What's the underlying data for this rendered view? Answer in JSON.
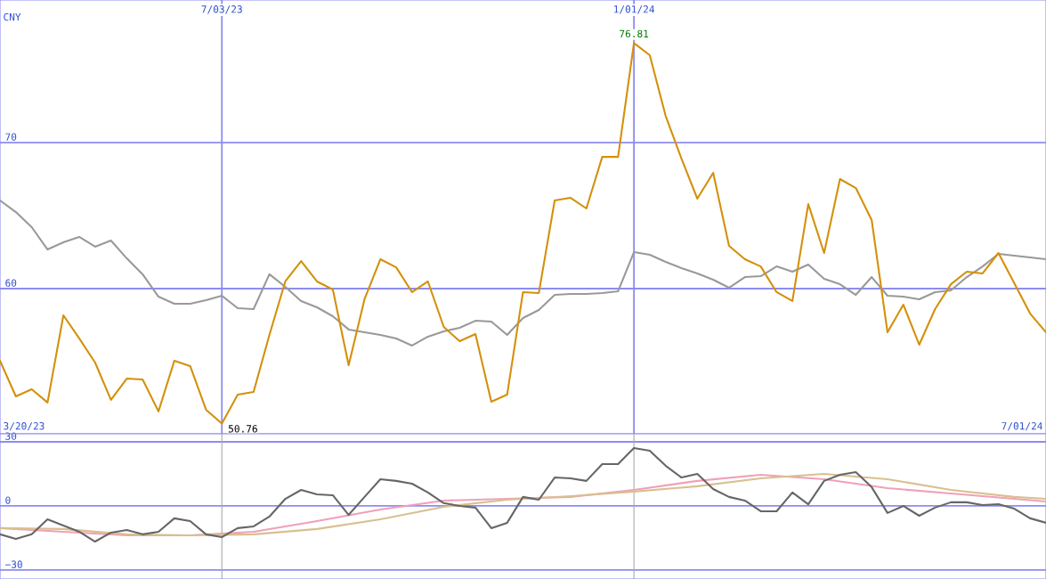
{
  "chart_data": [
    {
      "type": "line",
      "ylabel": "CNY",
      "xlim": [
        "2023-03-27",
        "2024-07-01"
      ],
      "ylim": [
        50.06,
        79.76
      ],
      "yticks": [
        60,
        70
      ],
      "xticks": [
        {
          "value": "2023-07-03",
          "label": "7/03/23"
        },
        {
          "value": "2024-01-01",
          "label": "1/01/24"
        }
      ],
      "grid": true,
      "x": [
        "2023-03-27",
        "2023-04-03",
        "2023-04-10",
        "2023-04-17",
        "2023-04-24",
        "2023-05-01",
        "2023-05-08",
        "2023-05-15",
        "2023-05-22",
        "2023-05-29",
        "2023-06-05",
        "2023-06-12",
        "2023-06-19",
        "2023-06-26",
        "2023-07-03",
        "2023-07-10",
        "2023-07-17",
        "2023-07-24",
        "2023-07-31",
        "2023-08-07",
        "2023-08-14",
        "2023-08-21",
        "2023-08-28",
        "2023-09-04",
        "2023-09-11",
        "2023-09-18",
        "2023-09-25",
        "2023-10-02",
        "2023-10-09",
        "2023-10-16",
        "2023-10-23",
        "2023-10-30",
        "2023-11-06",
        "2023-11-13",
        "2023-11-20",
        "2023-11-27",
        "2023-12-04",
        "2023-12-11",
        "2023-12-18",
        "2023-12-25",
        "2024-01-01",
        "2024-01-08",
        "2024-01-15",
        "2024-01-22",
        "2024-01-29",
        "2024-02-05",
        "2024-02-12",
        "2024-02-19",
        "2024-02-26",
        "2024-03-04",
        "2024-03-11",
        "2024-03-18",
        "2024-03-25",
        "2024-04-01",
        "2024-04-08",
        "2024-04-15",
        "2024-04-22",
        "2024-04-29",
        "2024-05-06",
        "2024-05-13",
        "2024-05-20",
        "2024-05-27",
        "2024-06-03",
        "2024-06-10",
        "2024-06-17",
        "2024-06-24",
        "2024-07-01"
      ],
      "series": [
        {
          "color": "#999999",
          "values": [
            66.04,
            65.24,
            64.21,
            62.68,
            63.17,
            63.54,
            62.87,
            63.29,
            62.07,
            60.98,
            59.45,
            58.96,
            58.96,
            59.21,
            59.51,
            58.66,
            58.6,
            60.98,
            60.12,
            59.15,
            58.72,
            58.11,
            57.2,
            57.01,
            56.83,
            56.59,
            56.1,
            56.71,
            57.07,
            57.32,
            57.8,
            57.74,
            56.83,
            57.99,
            58.54,
            59.57,
            59.63,
            59.63,
            59.7,
            59.82,
            62.5,
            62.32,
            61.83,
            61.4,
            61.04,
            60.61,
            60.06,
            60.79,
            60.85,
            61.52,
            61.16,
            61.65,
            60.67,
            60.3,
            59.57,
            60.79,
            59.51,
            59.45,
            59.27,
            59.76,
            59.88,
            60.79,
            61.52,
            62.38,
            62.26,
            62.13,
            62.01
          ]
        },
        {
          "color": "#d4900a",
          "values": [
            55.06,
            52.62,
            53.11,
            52.2,
            58.17,
            56.59,
            54.94,
            52.38,
            53.84,
            53.78,
            51.59,
            55.06,
            54.7,
            51.71,
            50.76,
            52.74,
            52.93,
            56.83,
            60.49,
            61.89,
            60.49,
            59.94,
            54.76,
            59.27,
            62.01,
            61.46,
            59.76,
            60.49,
            57.38,
            56.4,
            56.89,
            52.26,
            52.74,
            59.76,
            59.7,
            66.04,
            66.22,
            65.49,
            69.02,
            69.02,
            76.81,
            75.98,
            71.83,
            68.9,
            66.16,
            67.93,
            62.93,
            62.01,
            61.52,
            59.76,
            59.15,
            65.79,
            62.44,
            67.5,
            66.89,
            64.7,
            57.01,
            58.9,
            56.16,
            58.6,
            60.3,
            61.16,
            61.04,
            62.44,
            60.37,
            58.29,
            57.01
          ]
        }
      ],
      "annotations": [
        {
          "text": "76.81",
          "x": "2024-01-01",
          "y": 76.81
        },
        {
          "text": "50.76",
          "x": "2023-07-03",
          "y": 50.76
        },
        "3/20/23",
        "7/01/24"
      ]
    },
    {
      "type": "line",
      "xlim": [
        "2023-03-27",
        "2024-07-01"
      ],
      "ylim": [
        -34.2,
        33.75
      ],
      "yticks": [
        {
          "value": 30,
          "label": "30"
        },
        {
          "value": 0,
          "label": "0"
        },
        {
          "value": -30,
          "label": "−30"
        }
      ],
      "xticks": [
        {
          "value": "2023-07-03",
          "label": null
        },
        {
          "value": "2024-01-01",
          "label": null
        }
      ],
      "tick_labels": "y",
      "grid": true,
      "x": [
        "2023-03-27",
        "2023-04-03",
        "2023-04-10",
        "2023-04-17",
        "2023-04-24",
        "2023-05-01",
        "2023-05-08",
        "2023-05-15",
        "2023-05-22",
        "2023-05-29",
        "2023-06-05",
        "2023-06-12",
        "2023-06-19",
        "2023-06-26",
        "2023-07-03",
        "2023-07-10",
        "2023-07-17",
        "2023-07-24",
        "2023-07-31",
        "2023-08-07",
        "2023-08-14",
        "2023-08-21",
        "2023-08-28",
        "2023-09-04",
        "2023-09-11",
        "2023-09-18",
        "2023-09-25",
        "2023-10-02",
        "2023-10-09",
        "2023-10-16",
        "2023-10-23",
        "2023-10-30",
        "2023-11-06",
        "2023-11-13",
        "2023-11-20",
        "2023-11-27",
        "2023-12-04",
        "2023-12-11",
        "2023-12-18",
        "2023-12-25",
        "2024-01-01",
        "2024-01-08",
        "2024-01-15",
        "2024-01-22",
        "2024-01-29",
        "2024-02-05",
        "2024-02-12",
        "2024-02-19",
        "2024-02-26",
        "2024-03-04",
        "2024-03-11",
        "2024-03-18",
        "2024-03-25",
        "2024-04-01",
        "2024-04-08",
        "2024-04-15",
        "2024-04-22",
        "2024-04-29",
        "2024-05-06",
        "2024-05-13",
        "2024-05-20",
        "2024-05-27",
        "2024-06-03",
        "2024-06-10",
        "2024-06-17",
        "2024-06-24",
        "2024-07-01"
      ],
      "series": [
        {
          "color": "#f0a0b8",
          "x": [
            "2023-03-27",
            "2023-04-24",
            "2023-05-22",
            "2023-06-19",
            "2023-07-17",
            "2023-08-14",
            "2023-09-11",
            "2023-10-09",
            "2023-11-06",
            "2023-12-04",
            "2024-01-01",
            "2024-01-29",
            "2024-02-26",
            "2024-03-25",
            "2024-04-22",
            "2024-05-20",
            "2024-06-17",
            "2024-07-01"
          ],
          "values": [
            -10.4,
            -12.1,
            -13.8,
            -13.8,
            -12.1,
            -7.1,
            -1.7,
            2.5,
            3.3,
            4.2,
            7.5,
            11.7,
            14.6,
            12.5,
            8.3,
            5.8,
            3.3,
            2.1
          ]
        },
        {
          "color": "#d8c090",
          "x": [
            "2023-03-27",
            "2023-04-24",
            "2023-05-22",
            "2023-06-19",
            "2023-07-17",
            "2023-08-14",
            "2023-09-11",
            "2023-10-09",
            "2023-11-06",
            "2023-12-04",
            "2024-01-01",
            "2024-01-29",
            "2024-02-26",
            "2024-03-25",
            "2024-04-22",
            "2024-05-20",
            "2024-06-17",
            "2024-07-01"
          ],
          "values": [
            -10.4,
            -10.8,
            -13.3,
            -13.8,
            -13.3,
            -10.8,
            -6.3,
            -0.4,
            2.9,
            4.6,
            6.7,
            9.2,
            12.9,
            15.0,
            12.5,
            7.5,
            4.2,
            3.3
          ]
        },
        {
          "color": "#666666",
          "values": [
            -13.3,
            -15.4,
            -13.3,
            -6.3,
            -9.2,
            -12.1,
            -16.7,
            -12.5,
            -11.3,
            -13.3,
            -12.1,
            -5.8,
            -7.1,
            -13.3,
            -14.6,
            -10.4,
            -9.6,
            -5.0,
            3.3,
            7.5,
            5.4,
            5.0,
            -4.2,
            4.2,
            12.5,
            11.7,
            10.4,
            6.3,
            1.3,
            0,
            -0.8,
            -10.4,
            -7.9,
            4.2,
            2.9,
            13.3,
            12.9,
            11.7,
            19.6,
            19.6,
            27.1,
            25.8,
            18.8,
            13.3,
            15.0,
            7.9,
            4.2,
            2.5,
            -2.5,
            -2.5,
            6.3,
            0.8,
            11.7,
            14.6,
            15.8,
            8.8,
            -3.3,
            0,
            -4.6,
            -0.8,
            1.7,
            1.7,
            0.4,
            0.8,
            -1.3,
            -5.8,
            -7.9
          ]
        }
      ]
    }
  ]
}
